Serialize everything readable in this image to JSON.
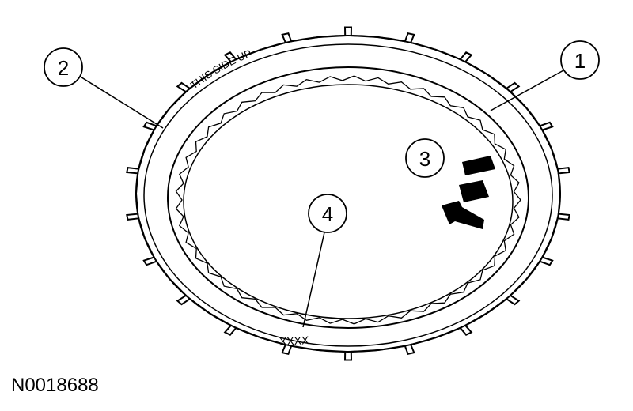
{
  "diagram": {
    "ring_marking": "THIS SIDE UP",
    "part_code": "XXXX",
    "figure_id": "N0018688",
    "callouts": [
      {
        "id": "callout-1",
        "label": "1"
      },
      {
        "id": "callout-2",
        "label": "2"
      },
      {
        "id": "callout-3",
        "label": "3"
      },
      {
        "id": "callout-4",
        "label": "4"
      }
    ]
  }
}
